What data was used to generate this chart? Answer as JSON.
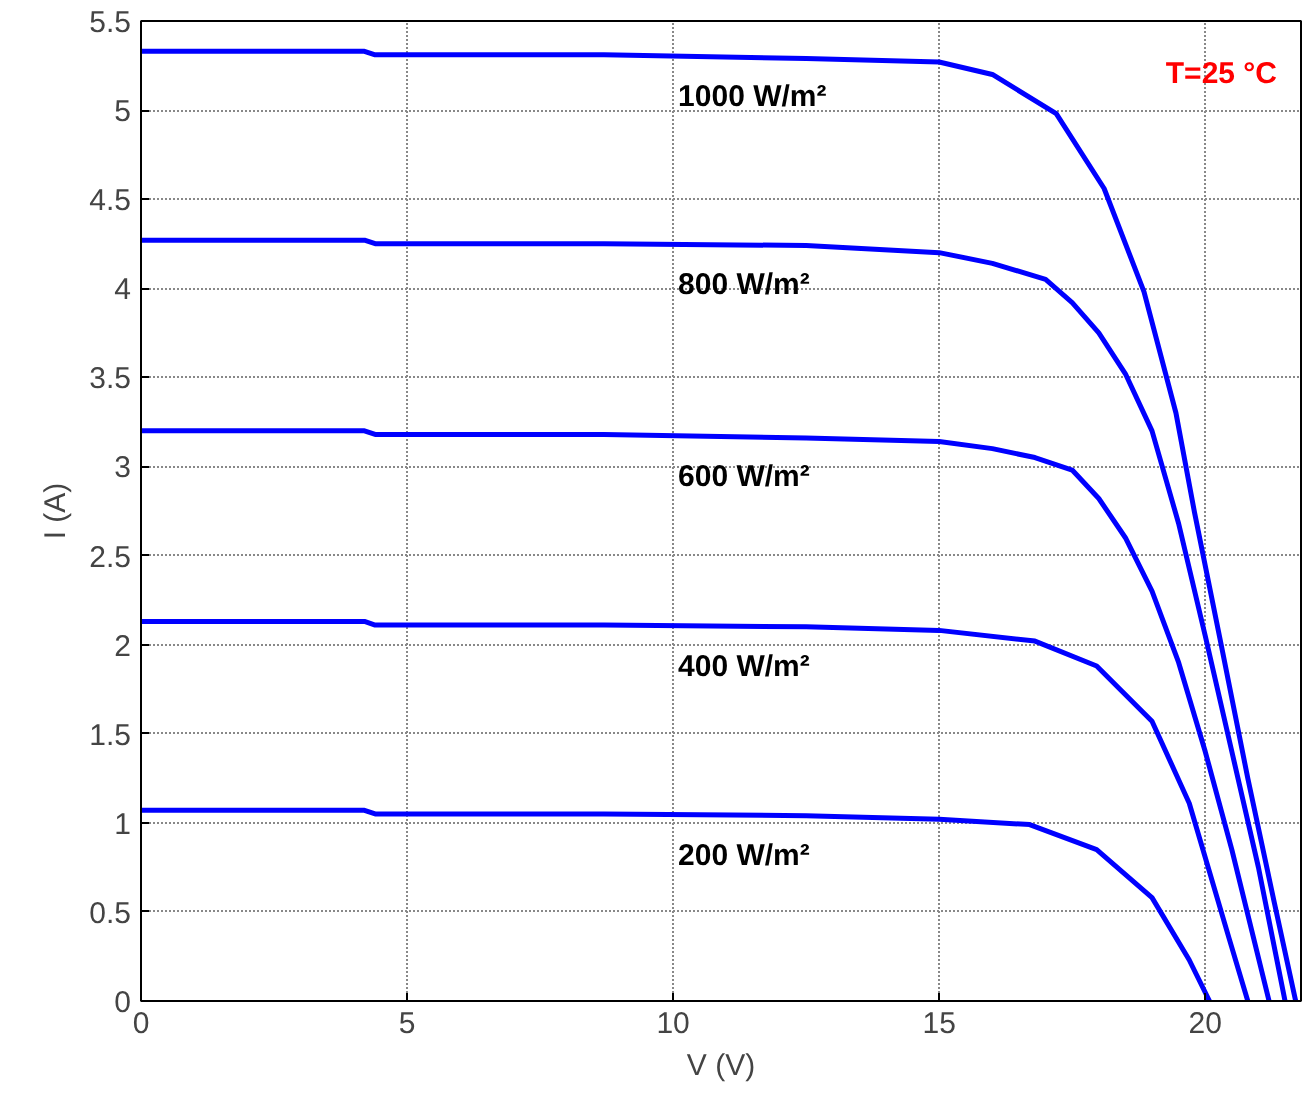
{
  "chart_data": {
    "type": "line",
    "xlabel": "V (V)",
    "ylabel": "I (A)",
    "xlim": [
      0,
      21.8
    ],
    "ylim": [
      0,
      5.5
    ],
    "xticks": [
      0,
      5,
      10,
      15,
      20
    ],
    "yticks": [
      0,
      0.5,
      1,
      1.5,
      2,
      2.5,
      3,
      3.5,
      4,
      4.5,
      5,
      5.5
    ],
    "grid": true,
    "line_style": "solid",
    "marker": "none",
    "series": [
      {
        "name": "1000 W/m²",
        "color": "#0000ff",
        "x": [
          0,
          4.2,
          4.4,
          8.7,
          12.5,
          15,
          16,
          17.2,
          18.1,
          18.85,
          19.45,
          19.8,
          20.3,
          20.8,
          21.3,
          21.7
        ],
        "values": [
          5.33,
          5.33,
          5.31,
          5.31,
          5.29,
          5.27,
          5.2,
          4.98,
          4.56,
          3.98,
          3.3,
          2.74,
          2.0,
          1.25,
          0.55,
          0
        ]
      },
      {
        "name": "800 W/m²",
        "color": "#0000ff",
        "x": [
          0,
          4.2,
          4.4,
          8.7,
          12.5,
          15,
          16,
          17,
          17.5,
          18,
          18.5,
          19,
          19.5,
          20,
          20.5,
          21,
          21.5
        ],
        "values": [
          4.27,
          4.27,
          4.25,
          4.25,
          4.24,
          4.2,
          4.14,
          4.05,
          3.92,
          3.75,
          3.52,
          3.2,
          2.68,
          2.05,
          1.4,
          0.75,
          0
        ]
      },
      {
        "name": "600 W/m²",
        "color": "#0000ff",
        "x": [
          0,
          4.2,
          4.4,
          8.7,
          12.5,
          15,
          16,
          16.8,
          17.5,
          18,
          18.5,
          19,
          19.5,
          20,
          20.5,
          21.2
        ],
        "values": [
          3.2,
          3.2,
          3.18,
          3.18,
          3.16,
          3.14,
          3.1,
          3.05,
          2.98,
          2.82,
          2.6,
          2.3,
          1.9,
          1.4,
          0.85,
          0
        ]
      },
      {
        "name": "400 W/m²",
        "color": "#0000ff",
        "x": [
          0,
          4.2,
          4.4,
          8.7,
          12.5,
          15,
          16.8,
          17.96,
          19,
          19.7,
          20.45,
          20.8
        ],
        "values": [
          2.13,
          2.13,
          2.11,
          2.11,
          2.1,
          2.08,
          2.02,
          1.88,
          1.57,
          1.11,
          0.35,
          0
        ]
      },
      {
        "name": "200 W/m²",
        "color": "#0000ff",
        "x": [
          0,
          4.2,
          4.4,
          8.7,
          12.5,
          15,
          16.7,
          17.96,
          19,
          19.7,
          20.08
        ],
        "values": [
          1.07,
          1.07,
          1.05,
          1.05,
          1.04,
          1.02,
          0.99,
          0.85,
          0.58,
          0.23,
          0
        ]
      }
    ],
    "annotations": [
      "T=25 °C"
    ]
  }
}
